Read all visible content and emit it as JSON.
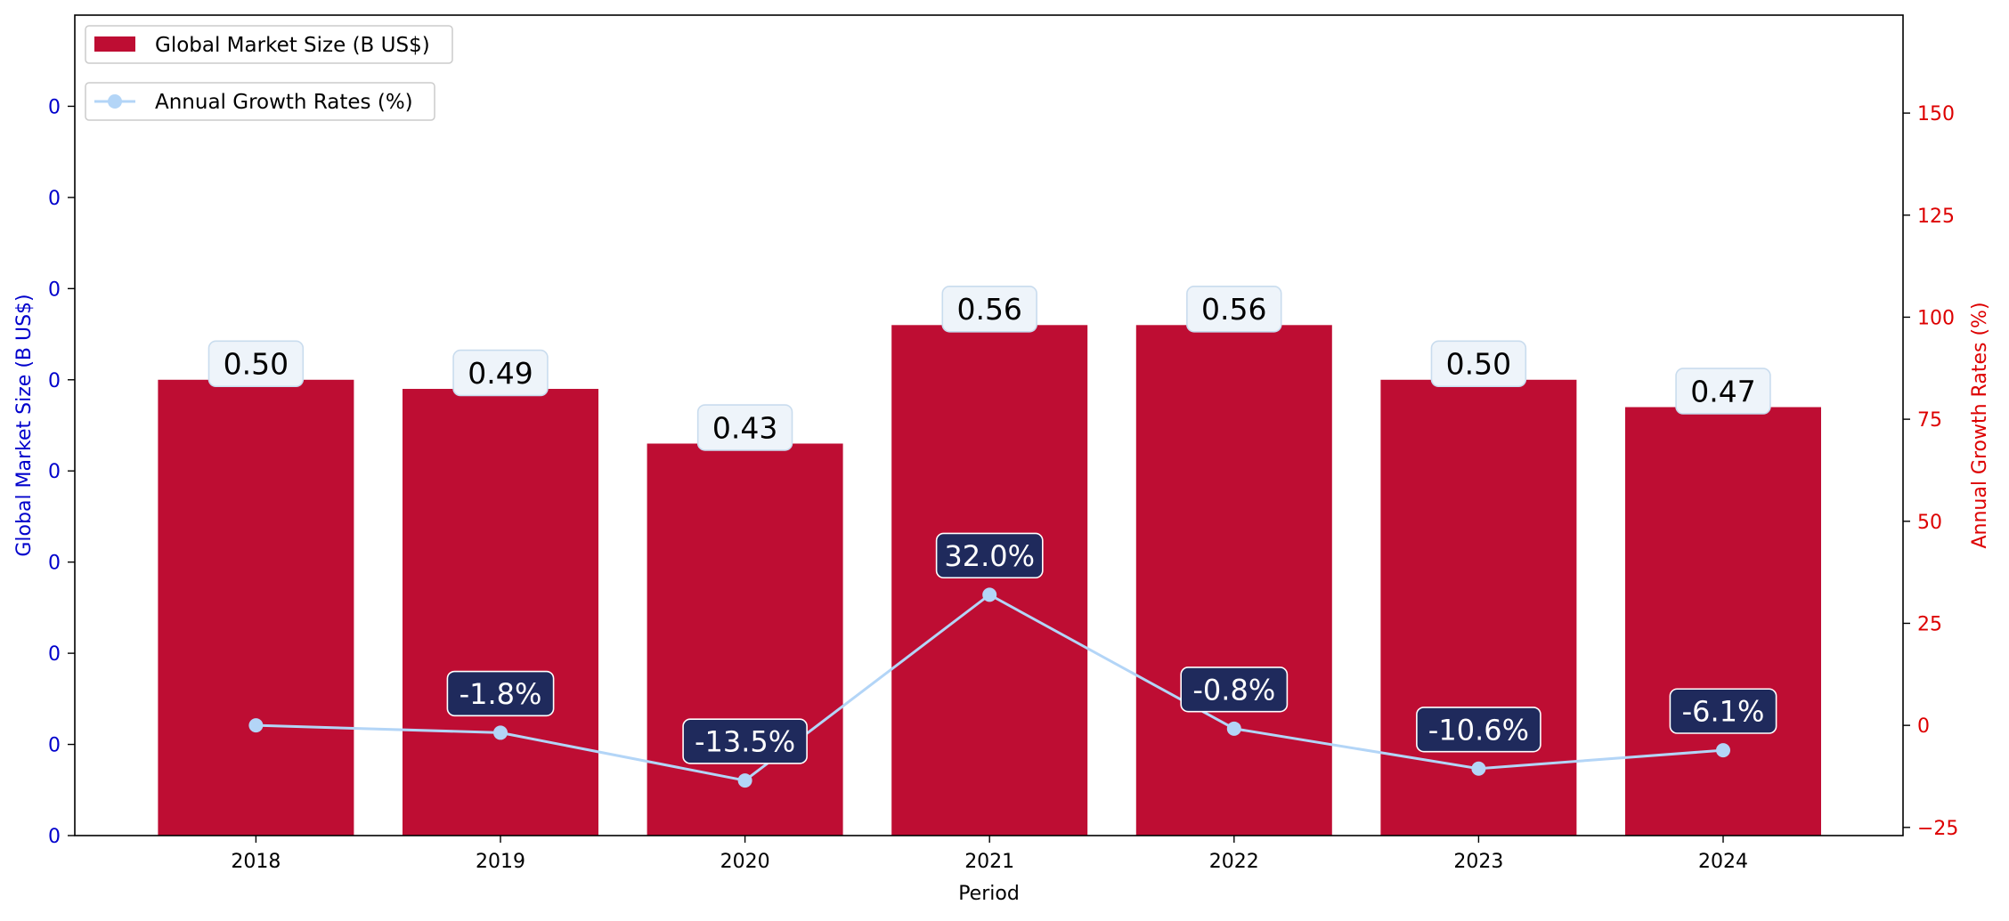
{
  "chart_data": {
    "type": "bar",
    "categories": [
      "2018",
      "2019",
      "2020",
      "2021",
      "2022",
      "2023",
      "2024"
    ],
    "xlabel": "Period",
    "y_left": {
      "label": "Global Market Size (B US$)",
      "range": [
        0,
        0.9
      ],
      "tick_labels": [
        "0",
        "0",
        "0",
        "0",
        "0",
        "0",
        "0",
        "0",
        "0"
      ],
      "color": "#0000cc"
    },
    "y_right": {
      "label": "Annual Growth Rates (%)",
      "range": [
        -27,
        174
      ],
      "ticks": [
        -25,
        0,
        25,
        50,
        75,
        100,
        125,
        150
      ],
      "tick_labels": [
        "−25",
        "0",
        "25",
        "50",
        "75",
        "100",
        "125",
        "150"
      ],
      "color": "#dd0000"
    },
    "series": [
      {
        "name": "Global Market Size (B US$)",
        "type": "bar",
        "axis": "left",
        "color": "#be0d33",
        "values": [
          0.5,
          0.49,
          0.43,
          0.56,
          0.56,
          0.5,
          0.47
        ],
        "labels": [
          "0.50",
          "0.49",
          "0.43",
          "0.56",
          "0.56",
          "0.50",
          "0.47"
        ]
      },
      {
        "name": "Annual Growth Rates (%)",
        "type": "line",
        "axis": "right",
        "color": "#b3d5f7",
        "values": [
          0.0,
          -1.8,
          -13.5,
          32.0,
          -0.8,
          -10.6,
          -6.1
        ],
        "labels": [
          "",
          "-1.8%",
          "-13.5%",
          "32.0%",
          "-0.8%",
          "-10.6%",
          "-6.1%"
        ]
      }
    ],
    "legend": {
      "placement": "top-left",
      "entries": [
        "Global Market Size (B US$)",
        "Annual Growth Rates (%)"
      ]
    },
    "bar_label_style": {
      "fill": "#eef4fa",
      "border": "#c9dcee",
      "text": "#000000"
    },
    "line_label_style": {
      "fill": "#1f2a5c",
      "border": "#ffffff",
      "text": "#ffffff"
    },
    "grid": false
  }
}
